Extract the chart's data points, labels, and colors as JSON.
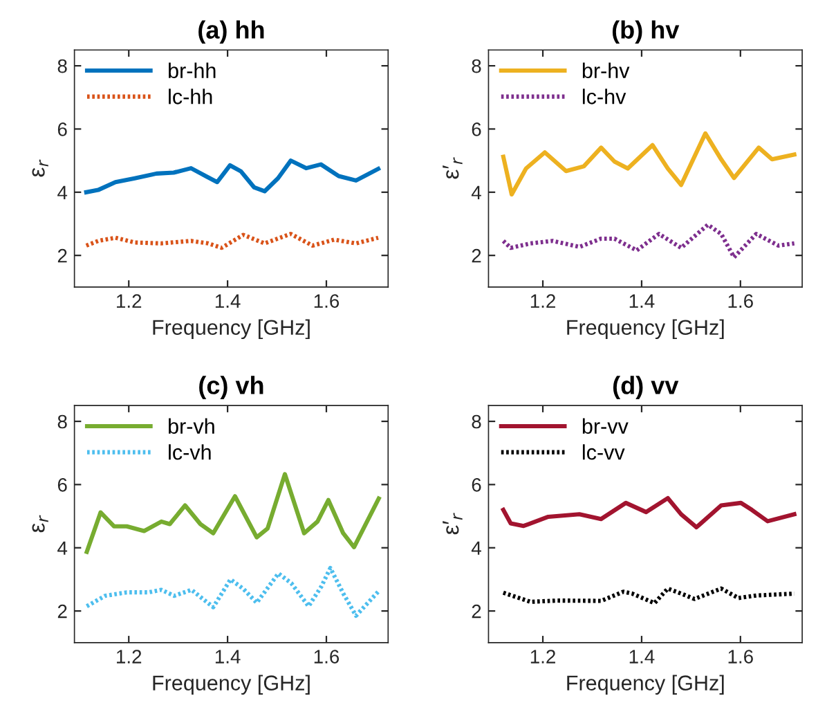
{
  "chart_data": [
    {
      "type": "line",
      "title": "(a) hh",
      "xlabel": "Frequency [GHz]",
      "ylabel": "ε$_{r}$",
      "xlim": [
        1.09,
        1.725
      ],
      "ylim": [
        1,
        8.5
      ],
      "xticks": [
        1.2,
        1.4,
        1.6
      ],
      "yticks": [
        2,
        4,
        6,
        8
      ],
      "legend": "top left",
      "grid": false,
      "series": [
        {
          "name": "br-hh",
          "color": "#0072bd",
          "line_style": "solid",
          "x": [
            1.114,
            1.138,
            1.173,
            1.212,
            1.256,
            1.291,
            1.326,
            1.357,
            1.379,
            1.405,
            1.427,
            1.454,
            1.475,
            1.502,
            1.528,
            1.559,
            1.589,
            1.625,
            1.66,
            1.705
          ],
          "values": [
            4.0,
            4.07,
            4.32,
            4.44,
            4.59,
            4.62,
            4.76,
            4.5,
            4.32,
            4.85,
            4.66,
            4.15,
            4.03,
            4.44,
            5.0,
            4.76,
            4.88,
            4.51,
            4.37,
            4.74
          ]
        },
        {
          "name": "lc-hh",
          "color": "#d95319",
          "line_style": "dotted",
          "x": [
            1.114,
            1.138,
            1.173,
            1.212,
            1.265,
            1.326,
            1.361,
            1.388,
            1.432,
            1.475,
            1.528,
            1.572,
            1.616,
            1.66,
            1.705
          ],
          "values": [
            2.31,
            2.46,
            2.56,
            2.41,
            2.38,
            2.46,
            2.38,
            2.24,
            2.65,
            2.38,
            2.68,
            2.31,
            2.5,
            2.38,
            2.56
          ]
        }
      ]
    },
    {
      "type": "line",
      "title": "(b) hv",
      "xlabel": "Frequency [GHz]",
      "ylabel": "ε′$_{r}$",
      "xlim": [
        1.09,
        1.725
      ],
      "ylim": [
        1,
        8.5
      ],
      "xticks": [
        1.2,
        1.4,
        1.6
      ],
      "yticks": [
        2,
        4,
        6,
        8
      ],
      "legend": "top left",
      "grid": false,
      "series": [
        {
          "name": "br-hv",
          "color": "#edb120",
          "line_style": "solid",
          "x": [
            1.12,
            1.137,
            1.166,
            1.204,
            1.247,
            1.283,
            1.318,
            1.345,
            1.372,
            1.422,
            1.453,
            1.48,
            1.529,
            1.561,
            1.587,
            1.637,
            1.664,
            1.709
          ],
          "values": [
            5.12,
            3.93,
            4.75,
            5.26,
            4.67,
            4.82,
            5.41,
            4.97,
            4.75,
            5.49,
            4.75,
            4.23,
            5.86,
            5.04,
            4.45,
            5.41,
            5.04,
            5.19
          ]
        },
        {
          "name": "lc-hv",
          "color": "#7e2f8e",
          "line_style": "dotted",
          "x": [
            1.12,
            1.135,
            1.175,
            1.22,
            1.274,
            1.318,
            1.345,
            1.39,
            1.435,
            1.48,
            1.534,
            1.561,
            1.587,
            1.632,
            1.677,
            1.709
          ],
          "values": [
            2.46,
            2.24,
            2.38,
            2.46,
            2.27,
            2.53,
            2.53,
            2.16,
            2.68,
            2.24,
            2.97,
            2.68,
            1.94,
            2.68,
            2.31,
            2.38
          ]
        }
      ]
    },
    {
      "type": "line",
      "title": "(c) vh",
      "xlabel": "Frequency [GHz]",
      "ylabel": "ε$_{r}$",
      "xlim": [
        1.09,
        1.725
      ],
      "ylim": [
        1,
        8.5
      ],
      "xticks": [
        1.2,
        1.4,
        1.6
      ],
      "yticks": [
        2,
        4,
        6,
        8
      ],
      "legend": "top left",
      "grid": false,
      "series": [
        {
          "name": "br-vh",
          "color": "#77ac30",
          "line_style": "solid",
          "x": [
            1.115,
            1.143,
            1.17,
            1.196,
            1.231,
            1.266,
            1.283,
            1.314,
            1.345,
            1.371,
            1.415,
            1.459,
            1.481,
            1.516,
            1.555,
            1.582,
            1.604,
            1.634,
            1.656,
            1.706
          ],
          "values": [
            3.87,
            5.12,
            4.68,
            4.68,
            4.53,
            4.83,
            4.75,
            5.34,
            4.75,
            4.46,
            5.63,
            4.33,
            4.61,
            6.33,
            4.46,
            4.83,
            5.51,
            4.46,
            4.02,
            5.56
          ]
        },
        {
          "name": "lc-vh",
          "color": "#4dbeee",
          "line_style": "dotted",
          "x": [
            1.115,
            1.152,
            1.196,
            1.24,
            1.266,
            1.292,
            1.327,
            1.371,
            1.406,
            1.432,
            1.459,
            1.503,
            1.529,
            1.564,
            1.59,
            1.608,
            1.634,
            1.66,
            1.706
          ],
          "values": [
            2.15,
            2.48,
            2.59,
            2.59,
            2.67,
            2.48,
            2.67,
            2.12,
            3.0,
            2.7,
            2.26,
            3.19,
            2.88,
            2.15,
            2.78,
            3.36,
            2.56,
            1.85,
            2.63
          ]
        }
      ]
    },
    {
      "type": "line",
      "title": "(d) vv",
      "xlabel": "Frequency [GHz]",
      "ylabel": "ε′$_{r}$",
      "xlim": [
        1.09,
        1.725
      ],
      "ylim": [
        1,
        8.5
      ],
      "xticks": [
        1.2,
        1.4,
        1.6
      ],
      "yticks": [
        2,
        4,
        6,
        8
      ],
      "legend": "top left",
      "grid": false,
      "series": [
        {
          "name": "br-vv",
          "color": "#a2142f",
          "line_style": "solid",
          "x": [
            1.12,
            1.135,
            1.161,
            1.211,
            1.274,
            1.318,
            1.368,
            1.409,
            1.453,
            1.48,
            1.511,
            1.561,
            1.601,
            1.623,
            1.655,
            1.709
          ],
          "values": [
            5.2,
            4.77,
            4.69,
            4.98,
            5.06,
            4.91,
            5.42,
            5.13,
            5.57,
            5.06,
            4.65,
            5.34,
            5.42,
            5.2,
            4.84,
            5.06
          ]
        },
        {
          "name": "lc-vv",
          "color": "#000000",
          "line_style": "dotted",
          "x": [
            1.12,
            1.133,
            1.175,
            1.229,
            1.318,
            1.363,
            1.381,
            1.426,
            1.453,
            1.485,
            1.507,
            1.561,
            1.596,
            1.632,
            1.709
          ],
          "values": [
            2.58,
            2.51,
            2.29,
            2.33,
            2.32,
            2.61,
            2.55,
            2.25,
            2.71,
            2.52,
            2.38,
            2.71,
            2.41,
            2.49,
            2.55
          ]
        }
      ]
    }
  ]
}
